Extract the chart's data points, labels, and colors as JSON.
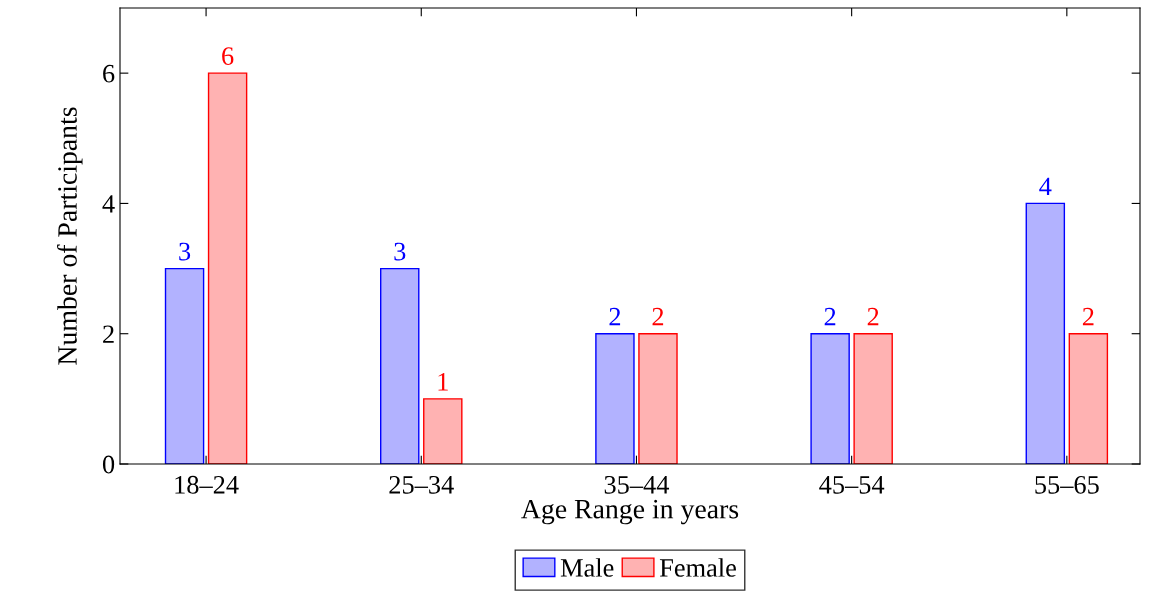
{
  "chart_data": {
    "type": "bar",
    "xlabel": "Age Range in years",
    "ylabel": "Number of Participants",
    "categories": [
      "18–24",
      "25–34",
      "35–44",
      "45–54",
      "55–65"
    ],
    "series": [
      {
        "name": "Male",
        "color": "#0000ff",
        "values": [
          3,
          3,
          2,
          2,
          4
        ]
      },
      {
        "name": "Female",
        "color": "#ff0000",
        "values": [
          6,
          1,
          2,
          2,
          2
        ]
      }
    ],
    "ylim": [
      0,
      7
    ],
    "yticks": [
      0,
      2,
      4,
      6
    ],
    "data_labels": true,
    "grid": false,
    "legend": "bottom"
  }
}
